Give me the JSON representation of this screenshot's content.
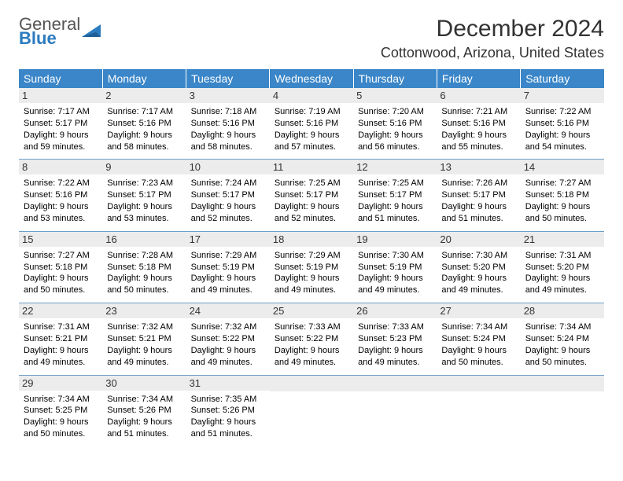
{
  "logo": {
    "word1": "General",
    "word2": "Blue"
  },
  "title": "December 2024",
  "location": "Cottonwood, Arizona, United States",
  "colors": {
    "header_bg": "#3a86c8",
    "header_fg": "#ffffff",
    "row_divider": "#6d9ec9",
    "daynum_bg": "#ececec",
    "text": "#000000",
    "logo_gray": "#555555",
    "logo_blue": "#2b7bbf"
  },
  "columns": [
    "Sunday",
    "Monday",
    "Tuesday",
    "Wednesday",
    "Thursday",
    "Friday",
    "Saturday"
  ],
  "weeks": [
    [
      {
        "day": "1",
        "sunrise": "7:17 AM",
        "sunset": "5:17 PM",
        "daylight": "9 hours and 59 minutes."
      },
      {
        "day": "2",
        "sunrise": "7:17 AM",
        "sunset": "5:16 PM",
        "daylight": "9 hours and 58 minutes."
      },
      {
        "day": "3",
        "sunrise": "7:18 AM",
        "sunset": "5:16 PM",
        "daylight": "9 hours and 58 minutes."
      },
      {
        "day": "4",
        "sunrise": "7:19 AM",
        "sunset": "5:16 PM",
        "daylight": "9 hours and 57 minutes."
      },
      {
        "day": "5",
        "sunrise": "7:20 AM",
        "sunset": "5:16 PM",
        "daylight": "9 hours and 56 minutes."
      },
      {
        "day": "6",
        "sunrise": "7:21 AM",
        "sunset": "5:16 PM",
        "daylight": "9 hours and 55 minutes."
      },
      {
        "day": "7",
        "sunrise": "7:22 AM",
        "sunset": "5:16 PM",
        "daylight": "9 hours and 54 minutes."
      }
    ],
    [
      {
        "day": "8",
        "sunrise": "7:22 AM",
        "sunset": "5:16 PM",
        "daylight": "9 hours and 53 minutes."
      },
      {
        "day": "9",
        "sunrise": "7:23 AM",
        "sunset": "5:17 PM",
        "daylight": "9 hours and 53 minutes."
      },
      {
        "day": "10",
        "sunrise": "7:24 AM",
        "sunset": "5:17 PM",
        "daylight": "9 hours and 52 minutes."
      },
      {
        "day": "11",
        "sunrise": "7:25 AM",
        "sunset": "5:17 PM",
        "daylight": "9 hours and 52 minutes."
      },
      {
        "day": "12",
        "sunrise": "7:25 AM",
        "sunset": "5:17 PM",
        "daylight": "9 hours and 51 minutes."
      },
      {
        "day": "13",
        "sunrise": "7:26 AM",
        "sunset": "5:17 PM",
        "daylight": "9 hours and 51 minutes."
      },
      {
        "day": "14",
        "sunrise": "7:27 AM",
        "sunset": "5:18 PM",
        "daylight": "9 hours and 50 minutes."
      }
    ],
    [
      {
        "day": "15",
        "sunrise": "7:27 AM",
        "sunset": "5:18 PM",
        "daylight": "9 hours and 50 minutes."
      },
      {
        "day": "16",
        "sunrise": "7:28 AM",
        "sunset": "5:18 PM",
        "daylight": "9 hours and 50 minutes."
      },
      {
        "day": "17",
        "sunrise": "7:29 AM",
        "sunset": "5:19 PM",
        "daylight": "9 hours and 49 minutes."
      },
      {
        "day": "18",
        "sunrise": "7:29 AM",
        "sunset": "5:19 PM",
        "daylight": "9 hours and 49 minutes."
      },
      {
        "day": "19",
        "sunrise": "7:30 AM",
        "sunset": "5:19 PM",
        "daylight": "9 hours and 49 minutes."
      },
      {
        "day": "20",
        "sunrise": "7:30 AM",
        "sunset": "5:20 PM",
        "daylight": "9 hours and 49 minutes."
      },
      {
        "day": "21",
        "sunrise": "7:31 AM",
        "sunset": "5:20 PM",
        "daylight": "9 hours and 49 minutes."
      }
    ],
    [
      {
        "day": "22",
        "sunrise": "7:31 AM",
        "sunset": "5:21 PM",
        "daylight": "9 hours and 49 minutes."
      },
      {
        "day": "23",
        "sunrise": "7:32 AM",
        "sunset": "5:21 PM",
        "daylight": "9 hours and 49 minutes."
      },
      {
        "day": "24",
        "sunrise": "7:32 AM",
        "sunset": "5:22 PM",
        "daylight": "9 hours and 49 minutes."
      },
      {
        "day": "25",
        "sunrise": "7:33 AM",
        "sunset": "5:22 PM",
        "daylight": "9 hours and 49 minutes."
      },
      {
        "day": "26",
        "sunrise": "7:33 AM",
        "sunset": "5:23 PM",
        "daylight": "9 hours and 49 minutes."
      },
      {
        "day": "27",
        "sunrise": "7:34 AM",
        "sunset": "5:24 PM",
        "daylight": "9 hours and 50 minutes."
      },
      {
        "day": "28",
        "sunrise": "7:34 AM",
        "sunset": "5:24 PM",
        "daylight": "9 hours and 50 minutes."
      }
    ],
    [
      {
        "day": "29",
        "sunrise": "7:34 AM",
        "sunset": "5:25 PM",
        "daylight": "9 hours and 50 minutes."
      },
      {
        "day": "30",
        "sunrise": "7:34 AM",
        "sunset": "5:26 PM",
        "daylight": "9 hours and 51 minutes."
      },
      {
        "day": "31",
        "sunrise": "7:35 AM",
        "sunset": "5:26 PM",
        "daylight": "9 hours and 51 minutes."
      },
      null,
      null,
      null,
      null
    ]
  ],
  "labels": {
    "sunrise_prefix": "Sunrise: ",
    "sunset_prefix": "Sunset: ",
    "daylight_prefix": "Daylight: "
  }
}
